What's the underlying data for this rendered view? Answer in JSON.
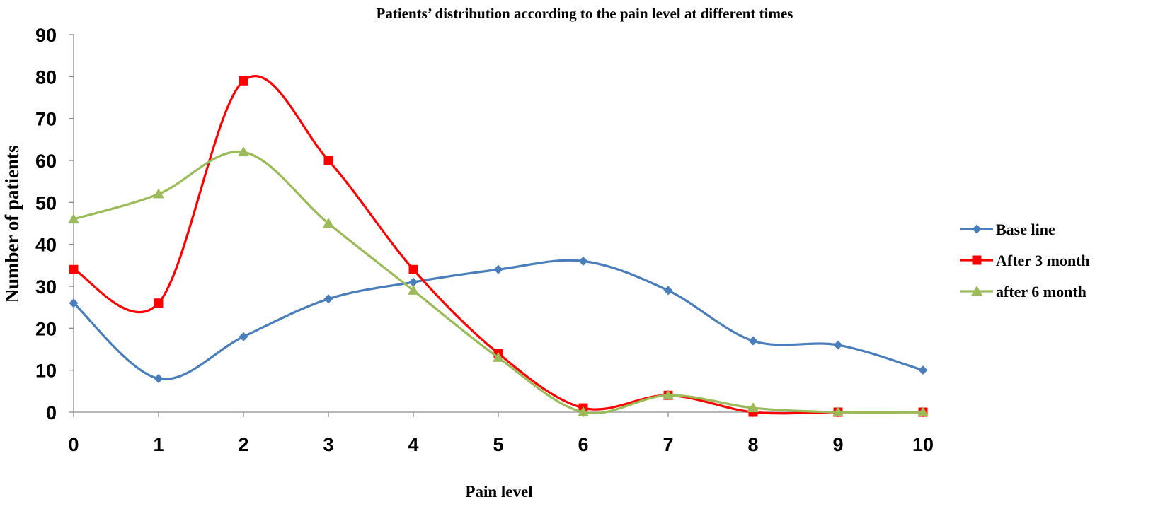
{
  "chart_data": {
    "type": "line",
    "title": "Patients’ distribution  according to the pain level at different times",
    "xlabel": "Pain level",
    "ylabel": "Number of patients",
    "x": [
      0,
      1,
      2,
      3,
      4,
      5,
      6,
      7,
      8,
      9,
      10
    ],
    "x_tick_labels": [
      "0",
      "1",
      "2",
      "3",
      "4",
      "5",
      "6",
      "7",
      "8",
      "9",
      "10"
    ],
    "y_tick_labels": [
      "0",
      "10",
      "20",
      "30",
      "40",
      "50",
      "60",
      "70",
      "80",
      "90"
    ],
    "ylim": [
      0,
      90
    ],
    "xlim": [
      0,
      10
    ],
    "grid": false,
    "smooth": true,
    "legend_position": "right",
    "series": [
      {
        "name": "Base line",
        "color": "#4A7EBB",
        "marker": "diamond",
        "values": [
          26,
          8,
          18,
          27,
          31,
          34,
          36,
          29,
          17,
          16,
          10
        ]
      },
      {
        "name": "After 3 month",
        "color": "#FF0000",
        "marker": "square",
        "values": [
          34,
          26,
          79,
          60,
          34,
          14,
          1,
          4,
          0,
          0,
          0
        ]
      },
      {
        "name": "after 6 month",
        "color": "#9BBB59",
        "marker": "triangle",
        "values": [
          46,
          52,
          62,
          45,
          29,
          13,
          0,
          4,
          1,
          0,
          0
        ]
      }
    ]
  }
}
